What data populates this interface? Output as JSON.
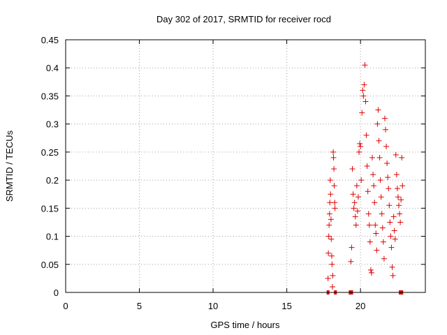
{
  "chart_data": {
    "type": "scatter",
    "title": "Day 302 of 2017, SRMTID for receiver rocd",
    "xlabel": "GPS time / hours",
    "ylabel": "SRMTID / TECUs",
    "xlim": [
      0,
      24.4
    ],
    "ylim": [
      0,
      0.45
    ],
    "xticks": [
      "0",
      "5",
      "10",
      "15",
      "20"
    ],
    "xtick_values": [
      0,
      5,
      10,
      15,
      20
    ],
    "yticks": [
      "0",
      "0.05",
      "0.1",
      "0.15",
      "0.2",
      "0.25",
      "0.3",
      "0.35",
      "0.4",
      "0.45"
    ],
    "ytick_values": [
      0,
      0.05,
      0.1,
      0.15,
      0.2,
      0.25,
      0.3,
      0.35,
      0.4,
      0.45
    ],
    "grid": true,
    "marker": "+",
    "color": "#dd0000",
    "series": [
      {
        "points": [
          [
            17.8,
            0.025
          ],
          [
            17.82,
            0.07
          ],
          [
            17.85,
            0.1
          ],
          [
            17.87,
            0.12
          ],
          [
            17.9,
            0.14
          ],
          [
            17.92,
            0.16
          ],
          [
            17.95,
            0.2
          ],
          [
            17.97,
            0.175
          ],
          [
            18.0,
            0.13
          ],
          [
            18.02,
            0.095
          ],
          [
            18.05,
            0.065
          ],
          [
            18.07,
            0.05
          ],
          [
            18.1,
            0.01
          ],
          [
            18.12,
            0.03
          ],
          [
            18.15,
            0.25
          ],
          [
            18.17,
            0.24
          ],
          [
            18.2,
            0.22
          ],
          [
            18.22,
            0.19
          ],
          [
            18.25,
            0.16
          ],
          [
            18.27,
            0.15
          ],
          [
            19.35,
            0.055
          ],
          [
            19.4,
            0.08
          ],
          [
            19.45,
            0.22
          ],
          [
            19.5,
            0.175
          ],
          [
            19.55,
            0.15
          ],
          [
            19.6,
            0.16
          ],
          [
            19.65,
            0.135
          ],
          [
            19.7,
            0.12
          ],
          [
            19.75,
            0.19
          ],
          [
            19.8,
            0.145
          ],
          [
            19.85,
            0.17
          ],
          [
            19.9,
            0.25
          ],
          [
            19.95,
            0.265
          ],
          [
            20.0,
            0.26
          ],
          [
            20.05,
            0.2
          ],
          [
            20.1,
            0.32
          ],
          [
            20.15,
            0.36
          ],
          [
            20.2,
            0.35
          ],
          [
            20.25,
            0.37
          ],
          [
            20.3,
            0.405
          ],
          [
            20.35,
            0.34
          ],
          [
            20.4,
            0.28
          ],
          [
            20.45,
            0.225
          ],
          [
            20.5,
            0.18
          ],
          [
            20.55,
            0.14
          ],
          [
            20.6,
            0.12
          ],
          [
            20.65,
            0.09
          ],
          [
            20.7,
            0.04
          ],
          [
            20.75,
            0.035
          ],
          [
            20.8,
            0.24
          ],
          [
            20.85,
            0.21
          ],
          [
            20.9,
            0.19
          ],
          [
            20.95,
            0.16
          ],
          [
            21.0,
            0.12
          ],
          [
            21.05,
            0.105
          ],
          [
            21.1,
            0.075
          ],
          [
            21.15,
            0.3
          ],
          [
            21.2,
            0.325
          ],
          [
            21.25,
            0.27
          ],
          [
            21.3,
            0.24
          ],
          [
            21.35,
            0.2
          ],
          [
            21.4,
            0.17
          ],
          [
            21.45,
            0.14
          ],
          [
            21.5,
            0.115
          ],
          [
            21.55,
            0.09
          ],
          [
            21.6,
            0.06
          ],
          [
            21.65,
            0.31
          ],
          [
            21.7,
            0.29
          ],
          [
            21.75,
            0.26
          ],
          [
            21.8,
            0.23
          ],
          [
            21.85,
            0.205
          ],
          [
            21.9,
            0.185
          ],
          [
            21.95,
            0.155
          ],
          [
            22.0,
            0.125
          ],
          [
            22.05,
            0.1
          ],
          [
            22.1,
            0.08
          ],
          [
            22.15,
            0.045
          ],
          [
            22.2,
            0.03
          ],
          [
            22.25,
            0.135
          ],
          [
            22.3,
            0.11
          ],
          [
            22.35,
            0.095
          ],
          [
            22.4,
            0.245
          ],
          [
            22.45,
            0.21
          ],
          [
            22.5,
            0.185
          ],
          [
            22.55,
            0.17
          ],
          [
            22.6,
            0.155
          ],
          [
            22.65,
            0.14
          ],
          [
            22.7,
            0.125
          ],
          [
            22.75,
            0.165
          ],
          [
            22.8,
            0.24
          ],
          [
            22.85,
            0.19
          ]
        ]
      }
    ],
    "baseline_marks_x": [
      17.8,
      18.3,
      19.3,
      19.4,
      22.7,
      22.8
    ]
  }
}
